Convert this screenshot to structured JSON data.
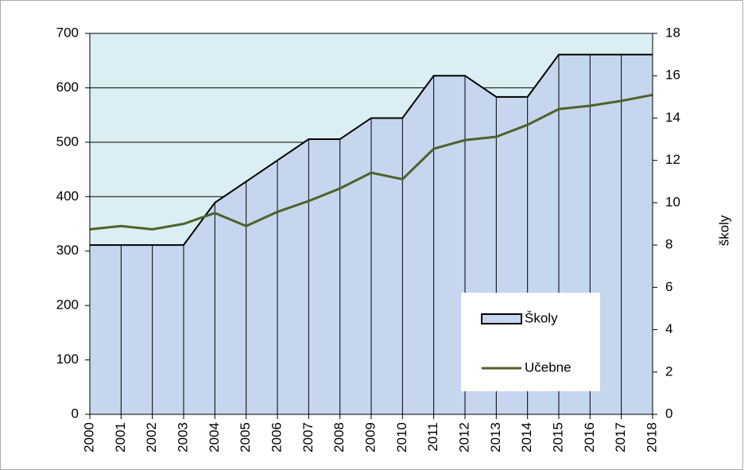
{
  "chart_data": {
    "type": "area-line",
    "categories": [
      "2000",
      "2001",
      "2002",
      "2003",
      "2004",
      "2005",
      "2006",
      "2007",
      "2008",
      "2009",
      "2010",
      "2011",
      "2012",
      "2013",
      "2014",
      "2015",
      "2016",
      "2017",
      "2018"
    ],
    "series": [
      {
        "name": "Školy",
        "color": "#c6d6ee",
        "axis": "y2",
        "kind": "area",
        "values": [
          8,
          8,
          8,
          8,
          10,
          11,
          12,
          13,
          13,
          14,
          14,
          16,
          16,
          15,
          15,
          17,
          17,
          17,
          17
        ]
      },
      {
        "name": "Učebne",
        "color": "#4f6228",
        "kind": "line",
        "values": [
          340,
          346,
          340,
          350,
          370,
          346,
          372,
          392,
          415,
          444,
          432,
          488,
          504,
          510,
          532,
          561,
          567,
          576,
          587
        ]
      }
    ],
    "ylim": [
      0,
      700
    ],
    "yticks": [
      0,
      100,
      200,
      300,
      400,
      500,
      600,
      700
    ],
    "y2lim": [
      0,
      18
    ],
    "y2ticks": [
      0,
      2,
      4,
      6,
      8,
      10,
      12,
      14,
      16,
      18
    ],
    "y2label": "školy",
    "plot_background": "#daeef3",
    "grid": true,
    "legend": "lower right"
  }
}
